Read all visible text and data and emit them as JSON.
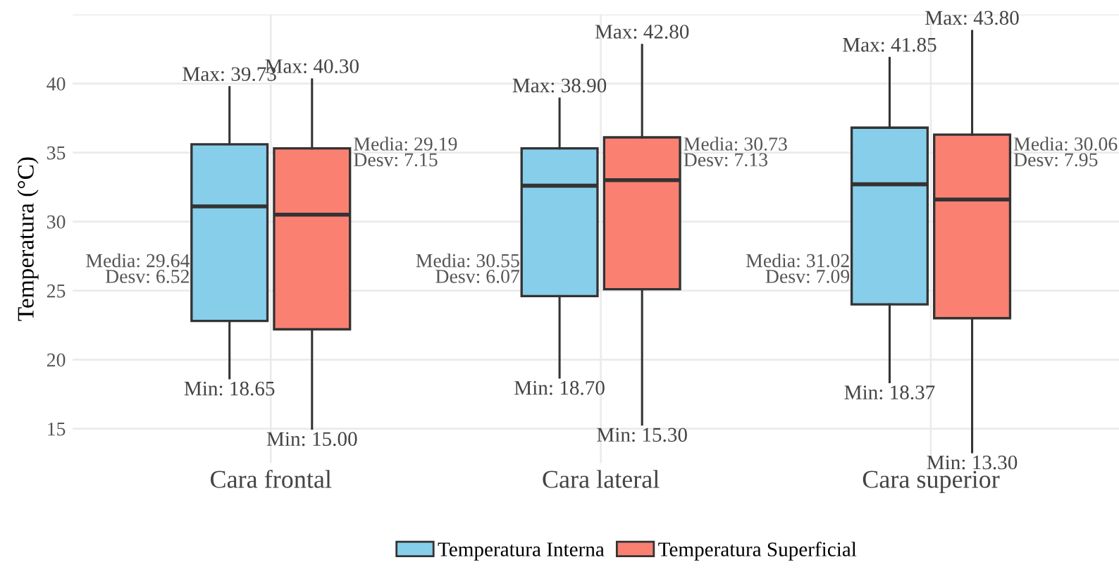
{
  "chart_data": {
    "type": "box",
    "ylabel": "Temperatura (°C)",
    "categories": [
      "Cara frontal",
      "Cara lateral",
      "Cara superior"
    ],
    "series": [
      {
        "name": "Temperatura Interna",
        "color": "#87ceeb",
        "boxes": [
          {
            "low": 18.65,
            "q1": 22.8,
            "median": 31.1,
            "q3": 35.6,
            "high": 39.73
          },
          {
            "low": 18.7,
            "q1": 24.6,
            "median": 32.6,
            "q3": 35.3,
            "high": 38.9
          },
          {
            "low": 18.37,
            "q1": 24.0,
            "median": 32.7,
            "q3": 36.8,
            "high": 41.85
          }
        ]
      },
      {
        "name": "Temperatura Superficial",
        "color": "#fa8072",
        "boxes": [
          {
            "low": 15.0,
            "q1": 22.2,
            "median": 30.5,
            "q3": 35.3,
            "high": 40.3
          },
          {
            "low": 15.3,
            "q1": 25.1,
            "median": 33.0,
            "q3": 36.1,
            "high": 42.8
          },
          {
            "low": 13.3,
            "q1": 23.0,
            "median": 31.6,
            "q3": 36.3,
            "high": 43.8
          }
        ]
      }
    ],
    "ylim": [
      12.5,
      45
    ],
    "yticks": [
      15,
      20,
      25,
      30,
      35,
      40,
      {
        "value": 45,
        "label": null
      }
    ],
    "grid": true,
    "legend": "bottom",
    "annotations": [
      "Max: 39.73",
      "Max: 40.30",
      "Min: 18.65",
      "Min: 15.00",
      "Media: 29.64\nDesv: 6.52",
      "Media: 29.19\nDesv: 7.15",
      "Max: 38.90",
      "Max: 42.80",
      "Min: 18.70",
      "Min: 15.30",
      "Media: 30.55\nDesv: 6.07",
      "Media: 30.73\nDesv: 7.13",
      "Max: 41.85",
      "Max: 43.80",
      "Min: 18.37",
      "Min: 13.30",
      "Media: 31.02\nDesv: 7.09",
      "Media: 30.06\nDesv: 7.95"
    ]
  }
}
